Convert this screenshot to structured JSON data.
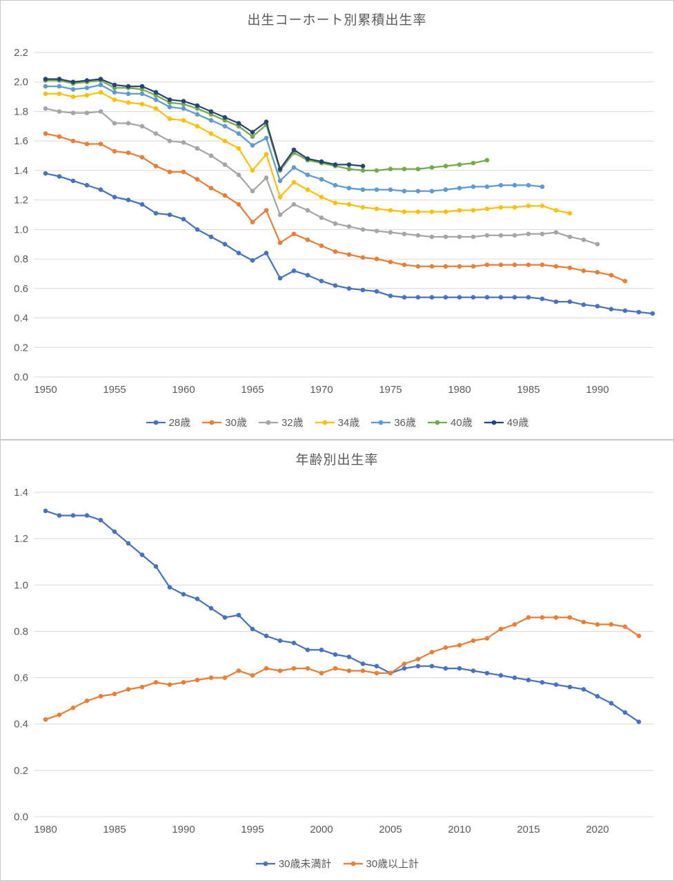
{
  "chart_data": [
    {
      "type": "line",
      "title": "出生コーホート別累積出生率",
      "xlabel": "",
      "ylabel": "",
      "x_start": 1950,
      "x_max": 1994,
      "x_ticks": [
        1950,
        1955,
        1960,
        1965,
        1970,
        1975,
        1980,
        1985,
        1990
      ],
      "ylim": [
        0.0,
        2.2
      ],
      "y_tick_step": 0.2,
      "grid": true,
      "grid_color": "#d9d9d9",
      "axis_text_color": "#595959",
      "legend_position": "bottom",
      "series": [
        {
          "name": "28歳",
          "color": "#4472C4",
          "values": [
            1.38,
            1.36,
            1.33,
            1.3,
            1.27,
            1.22,
            1.2,
            1.17,
            1.11,
            1.1,
            1.07,
            1.0,
            0.95,
            0.9,
            0.84,
            0.79,
            0.84,
            0.67,
            0.72,
            0.69,
            0.65,
            0.62,
            0.6,
            0.59,
            0.58,
            0.55,
            0.54,
            0.54,
            0.54,
            0.54,
            0.54,
            0.54,
            0.54,
            0.54,
            0.54,
            0.54,
            0.53,
            0.51,
            0.51,
            0.49,
            0.48,
            0.46,
            0.45,
            0.44,
            0.43
          ]
        },
        {
          "name": "30歳",
          "color": "#ED7D31",
          "values": [
            1.65,
            1.63,
            1.6,
            1.58,
            1.58,
            1.53,
            1.52,
            1.49,
            1.43,
            1.39,
            1.39,
            1.34,
            1.28,
            1.23,
            1.17,
            1.05,
            1.13,
            0.91,
            0.97,
            0.93,
            0.89,
            0.85,
            0.83,
            0.81,
            0.8,
            0.78,
            0.76,
            0.75,
            0.75,
            0.75,
            0.75,
            0.75,
            0.76,
            0.76,
            0.76,
            0.76,
            0.76,
            0.75,
            0.74,
            0.72,
            0.71,
            0.69,
            0.65
          ]
        },
        {
          "name": "32歳",
          "color": "#A5A5A5",
          "values": [
            1.82,
            1.8,
            1.79,
            1.79,
            1.8,
            1.72,
            1.72,
            1.7,
            1.65,
            1.6,
            1.59,
            1.55,
            1.5,
            1.44,
            1.37,
            1.26,
            1.35,
            1.1,
            1.17,
            1.13,
            1.08,
            1.04,
            1.02,
            1.0,
            0.99,
            0.98,
            0.97,
            0.96,
            0.95,
            0.95,
            0.95,
            0.95,
            0.96,
            0.96,
            0.96,
            0.97,
            0.97,
            0.98,
            0.95,
            0.93,
            0.9
          ]
        },
        {
          "name": "34歳",
          "color": "#FFC000",
          "values": [
            1.92,
            1.92,
            1.9,
            1.91,
            1.93,
            1.88,
            1.86,
            1.85,
            1.82,
            1.75,
            1.74,
            1.7,
            1.65,
            1.6,
            1.55,
            1.4,
            1.51,
            1.22,
            1.32,
            1.27,
            1.22,
            1.18,
            1.17,
            1.15,
            1.14,
            1.13,
            1.12,
            1.12,
            1.12,
            1.12,
            1.13,
            1.13,
            1.14,
            1.15,
            1.15,
            1.16,
            1.16,
            1.13,
            1.11
          ]
        },
        {
          "name": "36歳",
          "color": "#5B9BD5",
          "values": [
            1.97,
            1.97,
            1.95,
            1.96,
            1.98,
            1.93,
            1.92,
            1.92,
            1.88,
            1.83,
            1.82,
            1.78,
            1.74,
            1.7,
            1.65,
            1.57,
            1.62,
            1.33,
            1.42,
            1.37,
            1.34,
            1.3,
            1.28,
            1.27,
            1.27,
            1.27,
            1.26,
            1.26,
            1.26,
            1.27,
            1.28,
            1.29,
            1.29,
            1.3,
            1.3,
            1.3,
            1.29
          ]
        },
        {
          "name": "40歳",
          "color": "#70AD47",
          "values": [
            2.01,
            2.01,
            1.99,
            2.0,
            2.01,
            1.96,
            1.96,
            1.95,
            1.91,
            1.86,
            1.85,
            1.82,
            1.78,
            1.74,
            1.7,
            1.63,
            1.71,
            1.4,
            1.52,
            1.47,
            1.45,
            1.43,
            1.41,
            1.4,
            1.4,
            1.41,
            1.41,
            1.41,
            1.42,
            1.43,
            1.44,
            1.45,
            1.47
          ]
        },
        {
          "name": "49歳",
          "color": "#264478",
          "values": [
            2.02,
            2.02,
            2.0,
            2.01,
            2.02,
            1.98,
            1.97,
            1.97,
            1.93,
            1.88,
            1.87,
            1.84,
            1.8,
            1.76,
            1.72,
            1.66,
            1.73,
            1.41,
            1.54,
            1.48,
            1.46,
            1.44,
            1.44,
            1.43
          ]
        }
      ]
    },
    {
      "type": "line",
      "title": "年齢別出生率",
      "xlabel": "",
      "ylabel": "",
      "x_start": 1980,
      "x_max": 2023,
      "x_ticks": [
        1980,
        1985,
        1990,
        1995,
        2000,
        2005,
        2010,
        2015,
        2020
      ],
      "ylim": [
        0.0,
        1.4
      ],
      "y_tick_step": 0.2,
      "grid": true,
      "grid_color": "#d9d9d9",
      "axis_text_color": "#595959",
      "legend_position": "bottom",
      "series": [
        {
          "name": "30歳未満計",
          "color": "#4472C4",
          "values": [
            1.32,
            1.3,
            1.3,
            1.3,
            1.28,
            1.23,
            1.18,
            1.13,
            1.08,
            0.99,
            0.96,
            0.94,
            0.9,
            0.86,
            0.87,
            0.81,
            0.78,
            0.76,
            0.75,
            0.72,
            0.72,
            0.7,
            0.69,
            0.66,
            0.65,
            0.62,
            0.64,
            0.65,
            0.65,
            0.64,
            0.64,
            0.63,
            0.62,
            0.61,
            0.6,
            0.59,
            0.58,
            0.57,
            0.56,
            0.55,
            0.52,
            0.49,
            0.45,
            0.41
          ]
        },
        {
          "name": "30歳以上計",
          "color": "#ED7D31",
          "values": [
            0.42,
            0.44,
            0.47,
            0.5,
            0.52,
            0.53,
            0.55,
            0.56,
            0.58,
            0.57,
            0.58,
            0.59,
            0.6,
            0.6,
            0.63,
            0.61,
            0.64,
            0.63,
            0.64,
            0.64,
            0.62,
            0.64,
            0.63,
            0.63,
            0.62,
            0.62,
            0.66,
            0.68,
            0.71,
            0.73,
            0.74,
            0.76,
            0.77,
            0.81,
            0.83,
            0.86,
            0.86,
            0.86,
            0.86,
            0.84,
            0.83,
            0.83,
            0.82,
            0.78
          ]
        }
      ]
    }
  ]
}
